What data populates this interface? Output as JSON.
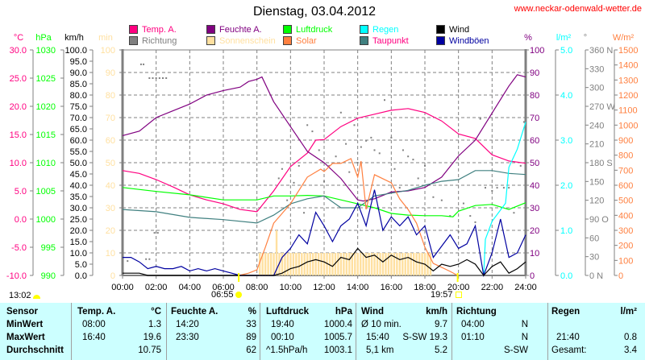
{
  "header": {
    "title": "Dienstag, 03.04.2012",
    "url": "www.neckar-odenwald-wetter.de"
  },
  "astro": {
    "moon_time": "13:02",
    "sunrise": "06:55",
    "sunset": "19:57",
    "sunrise_h": 6.917,
    "sunset_h": 19.95
  },
  "chart_data": {
    "type": "line",
    "title": "Dienstag, 03.04.2012",
    "legend_placement": "top",
    "legend": [
      {
        "key": "temp",
        "label": "Temp. A.",
        "color": "#ff0080"
      },
      {
        "key": "dir",
        "label": "Richtung",
        "color": "#808080"
      },
      {
        "key": "hum",
        "label": "Feuchte A.",
        "color": "#800080"
      },
      {
        "key": "sun",
        "label": "Sonnenschein",
        "color": "#ffe0a0"
      },
      {
        "key": "press",
        "label": "Luftdruck",
        "color": "#00ff00"
      },
      {
        "key": "solar",
        "label": "Solar",
        "color": "#ff8040"
      },
      {
        "key": "rain",
        "label": "Regen",
        "color": "#00ffff"
      },
      {
        "key": "dew",
        "label": "Taupunkt",
        "color": "#408080",
        "label_color": "#ff0080"
      },
      {
        "key": "wind",
        "label": "Wind",
        "color": "#000000"
      },
      {
        "key": "gust",
        "label": "Windböen",
        "color": "#0000a0"
      }
    ],
    "x_ticks": [
      "00:00",
      "02:00",
      "04:00",
      "06:00",
      "08:00",
      "10:00",
      "12:00",
      "14:00",
      "16:00",
      "18:00",
      "20:00",
      "22:00",
      "24:00"
    ],
    "xlim_hours": [
      0,
      24
    ],
    "grid": true,
    "axes": {
      "temp": {
        "unit": "°C",
        "min": -10,
        "max": 30,
        "ticks": [
          "30.0",
          "25.0",
          "20.0",
          "15.0",
          "10.0",
          "5.0",
          "0.0",
          "-5.0",
          "-10.0"
        ],
        "color": "#ff0080",
        "side": "left"
      },
      "press": {
        "unit": "hPa",
        "min": 990,
        "max": 1030,
        "ticks": [
          "1030",
          "1025",
          "1020",
          "1015",
          "1010",
          "1005",
          "1000",
          "995",
          "990"
        ],
        "color": "#00ff00",
        "side": "left"
      },
      "wind": {
        "unit": "km/h",
        "min": 0,
        "max": 100,
        "ticks": [
          "100.0",
          "95.0",
          "90.0",
          "85.0",
          "80.0",
          "75.0",
          "70.0",
          "65.0",
          "60.0",
          "55.0",
          "50.0",
          "45.0",
          "40.0",
          "35.0",
          "30.0",
          "25.0",
          "20.0",
          "15.0",
          "10.0",
          "5.0",
          "0.0"
        ],
        "color": "#000000",
        "side": "left"
      },
      "sun": {
        "unit": "min",
        "min": 0,
        "max": 100,
        "ticks": [
          "100",
          "90",
          "80",
          "70",
          "60",
          "50",
          "40",
          "30",
          "20",
          "10",
          "0"
        ],
        "color": "#ffe0a0",
        "side": "left"
      },
      "hum": {
        "unit": "%",
        "min": 0,
        "max": 100,
        "ticks": [
          "100",
          "90",
          "80",
          "70",
          "60",
          "50",
          "40",
          "30",
          "20",
          "10",
          "0"
        ],
        "color": "#800080",
        "side": "right"
      },
      "rain": {
        "unit": "l/m²",
        "min": 0,
        "max": 5,
        "ticks": [
          "5.0",
          "4.0",
          "3.0",
          "2.0",
          "1.0",
          "0.0"
        ],
        "color": "#00ffff",
        "side": "right"
      },
      "dir": {
        "unit": "°",
        "min": 0,
        "max": 360,
        "ticks": [
          "360 N",
          "330",
          "300",
          "270 W",
          "240",
          "210",
          "180 S",
          "150",
          "120",
          "90  O",
          "60",
          "30",
          "0    N"
        ],
        "color": "#808080",
        "side": "right"
      },
      "solar": {
        "unit": "W/m²",
        "min": 0,
        "max": 1500,
        "ticks": [
          "1500",
          "1400",
          "1300",
          "1200",
          "1100",
          "1000",
          "900",
          "800",
          "700",
          "600",
          "500",
          "400",
          "300",
          "200",
          "100",
          "0"
        ],
        "color": "#ff8040",
        "side": "right"
      }
    },
    "series": [
      {
        "key": "temp",
        "axis": "temp",
        "color": "#ff0080",
        "x": [
          0,
          1,
          2,
          3,
          4,
          5,
          6,
          7,
          8,
          9,
          10,
          11,
          11.5,
          12,
          13,
          14,
          15,
          16,
          17,
          18,
          19,
          20,
          21,
          22,
          23,
          24
        ],
        "y": [
          8.6,
          8.1,
          7.0,
          5.7,
          4.3,
          3.4,
          2.7,
          1.7,
          1.3,
          5.0,
          9.3,
          11.7,
          14.0,
          14.1,
          16.4,
          17.9,
          18.6,
          19.3,
          19.6,
          18.9,
          17.4,
          15.1,
          14.3,
          11.4,
          10.3,
          9.9
        ]
      },
      {
        "key": "hum",
        "axis": "hum",
        "color": "#800080",
        "x": [
          0,
          1,
          2,
          3,
          4,
          5,
          6,
          7,
          7.5,
          8,
          8.3,
          9,
          10,
          11,
          12,
          13,
          14,
          14.33,
          15,
          16,
          17,
          18,
          19,
          20,
          21,
          22,
          23,
          23.5,
          24
        ],
        "y": [
          62,
          64,
          70,
          73,
          76,
          80,
          82,
          83.5,
          86,
          87,
          88,
          77,
          66,
          55,
          50,
          43,
          33.5,
          33,
          34,
          37,
          37.5,
          39,
          43.6,
          53,
          60,
          72,
          84,
          89,
          88
        ]
      },
      {
        "key": "press",
        "axis": "press",
        "color": "#00ff00",
        "x": [
          0,
          2,
          4,
          6,
          8,
          9,
          10,
          11,
          12,
          13,
          14,
          15,
          16,
          17,
          18,
          19,
          19.67,
          20,
          21,
          22,
          23,
          24
        ],
        "y": [
          1005.6,
          1004.9,
          1004.3,
          1003.4,
          1003.4,
          1004.1,
          1004.1,
          1004.2,
          1004.1,
          1003.4,
          1002.7,
          1002.0,
          1001.0,
          1000.7,
          1000.6,
          1000.6,
          1000.4,
          1001.4,
          1002.4,
          1002.6,
          1001.7,
          1002.9
        ]
      },
      {
        "key": "dew",
        "axis": "temp",
        "color": "#408080",
        "x": [
          0,
          2,
          4,
          6,
          8,
          9,
          10,
          11,
          12,
          13,
          14,
          15,
          16,
          17,
          18,
          19,
          20,
          21,
          22,
          23,
          24
        ],
        "y": [
          1.7,
          1.3,
          0.3,
          -0.1,
          -0.7,
          0.7,
          2.7,
          3.6,
          4.1,
          2.0,
          2.0,
          4.1,
          4.6,
          5.1,
          6.0,
          6.7,
          7.0,
          8.6,
          8.6,
          8.1,
          7.9
        ]
      },
      {
        "key": "solar",
        "axis": "solar",
        "color": "#ff8040",
        "x": [
          6.92,
          7.5,
          8,
          8.5,
          9,
          10,
          11,
          11.8,
          12,
          12.5,
          13,
          13.6,
          14,
          14.2,
          14.5,
          15,
          16,
          16.5,
          17,
          17.5,
          18,
          18.5,
          19,
          19.5,
          19.95
        ],
        "y": [
          0,
          15,
          37,
          187,
          348,
          477,
          654,
          707,
          691,
          745,
          745,
          777,
          654,
          760,
          440,
          670,
          616,
          509,
          439,
          348,
          188,
          80,
          54,
          27,
          0
        ]
      },
      {
        "key": "rain",
        "axis": "rain",
        "color": "#00ffff",
        "x": [
          21.5,
          21.6,
          22,
          22.8,
          23,
          23.5,
          24
        ],
        "y": [
          0,
          0.8,
          1.2,
          1.6,
          2.4,
          2.8,
          3.4
        ]
      },
      {
        "key": "gust",
        "axis": "wind",
        "color": "#0000a0",
        "x": [
          0,
          0.5,
          1,
          1.5,
          2,
          2.5,
          3,
          3.5,
          4,
          4.5,
          5,
          5.5,
          6,
          6.5,
          7,
          7.5,
          8,
          8.5,
          9,
          9.5,
          10,
          10.5,
          11,
          11.5,
          12,
          12.5,
          13,
          13.5,
          14,
          14.5,
          15,
          15.5,
          16,
          16.5,
          17,
          17.5,
          18,
          18.5,
          19,
          19.5,
          20,
          20.5,
          21,
          21.5,
          22,
          22.5,
          23,
          23.5,
          24
        ],
        "y": [
          8,
          8,
          6,
          3,
          4,
          3,
          3,
          4,
          2,
          3,
          2,
          3,
          2,
          1,
          0,
          0,
          0,
          0,
          0,
          8,
          12,
          18,
          14,
          28,
          22,
          15,
          22,
          25,
          32,
          22,
          38,
          20,
          26,
          22,
          26,
          18,
          22,
          8,
          13,
          18,
          12,
          14,
          22,
          0,
          10,
          25,
          8,
          10,
          18
        ]
      },
      {
        "key": "wind",
        "axis": "wind",
        "color": "#000000",
        "x": [
          0,
          0.5,
          1,
          1.5,
          2,
          2.5,
          3,
          9,
          9.5,
          10,
          10.5,
          11,
          11.5,
          12,
          12.5,
          13,
          13.5,
          14,
          14.5,
          15,
          15.5,
          16,
          16.5,
          17,
          17.5,
          18,
          18.5,
          19,
          19.5,
          20,
          20.5,
          21,
          21.5,
          22,
          22.5,
          23,
          23.5,
          24
        ],
        "y": [
          1,
          1,
          1,
          0,
          0,
          0,
          0,
          0,
          1,
          3,
          4,
          6,
          7,
          6,
          4,
          8,
          7,
          12,
          8,
          9,
          6,
          9,
          7,
          8,
          6,
          5,
          2,
          5,
          4,
          5,
          7,
          5,
          0,
          4,
          6,
          1,
          3,
          6
        ]
      }
    ],
    "sunshine": {
      "axis": "sun",
      "start_hour": 8.17,
      "step_min": 10,
      "values": [
        10,
        10,
        10,
        10,
        10,
        10,
        20,
        10,
        10,
        10,
        10,
        10,
        10,
        10,
        10,
        10,
        10,
        10,
        10,
        10,
        10,
        10,
        10,
        10,
        10,
        10,
        10,
        10,
        10,
        10,
        10,
        10,
        10,
        10,
        10,
        10,
        10,
        10,
        10,
        10,
        10,
        10,
        10,
        10,
        10,
        10,
        10,
        10,
        10,
        10,
        10,
        10,
        10,
        10,
        10,
        10,
        10,
        10,
        10,
        10,
        10,
        10
      ]
    },
    "direction_points": [
      [
        0.3,
        23
      ],
      [
        1.1,
        337
      ],
      [
        1.25,
        337
      ],
      [
        1.6,
        315
      ],
      [
        1.8,
        315
      ],
      [
        2.0,
        315
      ],
      [
        2.2,
        315
      ],
      [
        2.4,
        315
      ],
      [
        2.6,
        315
      ],
      [
        1.9,
        68
      ],
      [
        2.1,
        68
      ],
      [
        1.4,
        26
      ],
      [
        1.6,
        26
      ],
      [
        9.3,
        155
      ],
      [
        9.5,
        170
      ],
      [
        9.8,
        120
      ],
      [
        10.2,
        148
      ],
      [
        10.5,
        175
      ],
      [
        10.8,
        100
      ],
      [
        11.0,
        240
      ],
      [
        11.3,
        230
      ],
      [
        11.7,
        200
      ],
      [
        12.0,
        150
      ],
      [
        12.3,
        175
      ],
      [
        12.7,
        190
      ],
      [
        13.0,
        260
      ],
      [
        13.3,
        210
      ],
      [
        13.5,
        165
      ],
      [
        13.8,
        240
      ],
      [
        14.0,
        180
      ],
      [
        14.2,
        205
      ],
      [
        14.5,
        215
      ],
      [
        14.8,
        220
      ],
      [
        15.0,
        200
      ],
      [
        15.3,
        195
      ],
      [
        15.6,
        280
      ],
      [
        16.0,
        220
      ],
      [
        16.2,
        170
      ],
      [
        16.5,
        140
      ],
      [
        16.7,
        200
      ],
      [
        17.0,
        190
      ],
      [
        17.3,
        185
      ],
      [
        17.6,
        155
      ],
      [
        18.0,
        175
      ],
      [
        18.5,
        125
      ],
      [
        19.0,
        120
      ],
      [
        19.5,
        95
      ],
      [
        20.0,
        70
      ],
      [
        20.3,
        115
      ],
      [
        20.7,
        95
      ],
      [
        21.0,
        85
      ],
      [
        21.3,
        250
      ],
      [
        21.6,
        140
      ],
      [
        22.0,
        135
      ],
      [
        22.3,
        140
      ],
      [
        22.7,
        140
      ],
      [
        23.0,
        140
      ],
      [
        23.3,
        100
      ],
      [
        23.7,
        175
      ],
      [
        23.9,
        245
      ]
    ]
  },
  "table": {
    "headers": [
      "Sensor",
      "Temp. A.",
      "°C",
      "Feuchte A.",
      "%",
      "Luftdruck",
      "hPa",
      "Wind",
      "km/h",
      "Richtung",
      "",
      "Regen",
      "l/m²"
    ],
    "rows": [
      [
        "MinWert",
        "08:00",
        "1.3",
        "14:20",
        "33",
        "19:40",
        "1000.4",
        "Ø 10 min.",
        "9.7",
        "04:00",
        "N",
        "",
        ""
      ],
      [
        "MaxWert",
        "16:40",
        "19.6",
        "23:30",
        "89",
        "00:10",
        "1005.7",
        "15:40",
        "S-SW 19.3",
        "01:10",
        "N",
        "21:40",
        "0.8"
      ],
      [
        "Durchschnitt",
        "",
        "10.75",
        "",
        "62",
        "^1.5hPa/h",
        "1003.1",
        "5,1 km",
        "5.2",
        "",
        "S-SW",
        "Gesamt:",
        "3.4"
      ]
    ]
  }
}
